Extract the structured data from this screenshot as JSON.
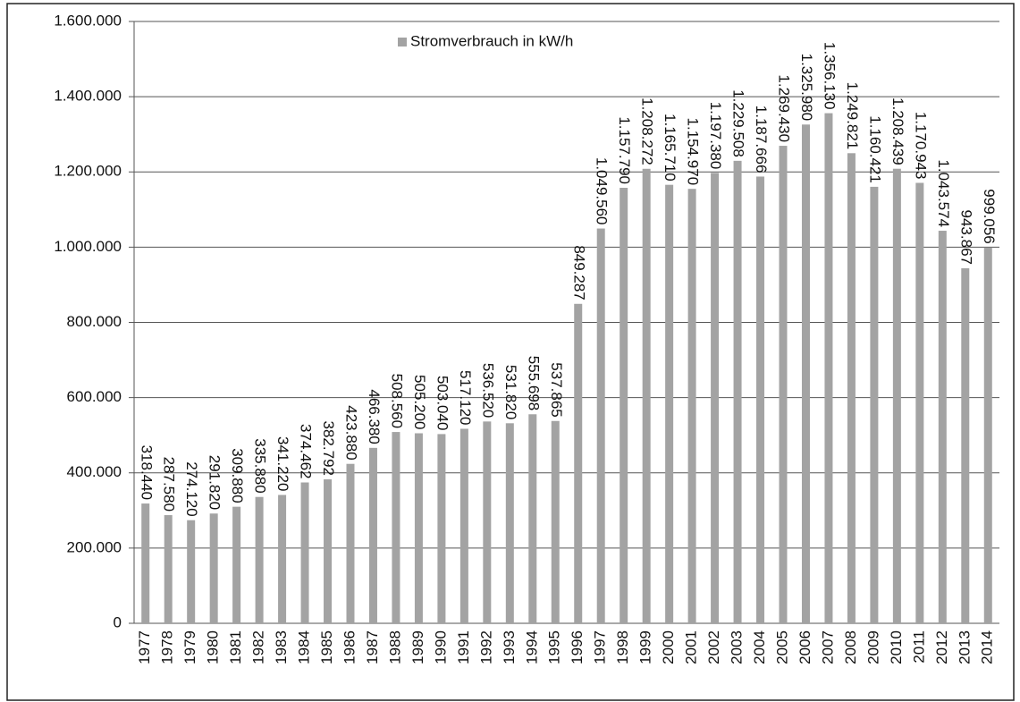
{
  "chart_data": {
    "type": "bar",
    "categories": [
      "1977",
      "1978",
      "1979",
      "1980",
      "1981",
      "1982",
      "1983",
      "1984",
      "1985",
      "1986",
      "1987",
      "1988",
      "1989",
      "1990",
      "1991",
      "1992",
      "1993",
      "1994",
      "1995",
      "1996",
      "1997",
      "1998",
      "1999",
      "2000",
      "2001",
      "2002",
      "2003",
      "2004",
      "2005",
      "2006",
      "2007",
      "2008",
      "2009",
      "2010",
      "2011",
      "2012",
      "2013",
      "2014"
    ],
    "series": [
      {
        "name": "Stromverbrauch in kW/h",
        "color": "#a3a3a3",
        "values": [
          318440,
          287580,
          274120,
          291820,
          309880,
          335880,
          341220,
          374462,
          382792,
          423880,
          466380,
          508560,
          505200,
          503040,
          517120,
          536520,
          531820,
          555698,
          537865,
          849287,
          1049560,
          1157790,
          1208272,
          1165710,
          1154970,
          1197380,
          1229508,
          1187666,
          1269430,
          1325980,
          1356130,
          1249821,
          1160421,
          1208439,
          1170943,
          1043574,
          943867,
          999056
        ],
        "value_labels": [
          "318.440",
          "287.580",
          "274.120",
          "291.820",
          "309.880",
          "335.880",
          "341.220",
          "374.462",
          "382.792",
          "423.880",
          "466.380",
          "508.560",
          "505.200",
          "503.040",
          "517.120",
          "536.520",
          "531.820",
          "555.698",
          "537.865",
          "849.287",
          "1.049.560",
          "1.157.790",
          "1.208.272",
          "1.165.710",
          "1.154.970",
          "1.197.380",
          "1.229.508",
          "1.187.666",
          "1.269.430",
          "1.325.980",
          "1.356.130",
          "1.249.821",
          "1.160.421",
          "1.208.439",
          "1.170.943",
          "1.043.574",
          "943.867",
          "999.056"
        ]
      }
    ],
    "ylim": [
      0,
      1600000
    ],
    "yticks": [
      0,
      {
        "value": 200000,
        "label": "200.000"
      },
      {
        "value": 400000,
        "label": "400.000"
      },
      {
        "value": 600000,
        "label": "600.000"
      },
      {
        "value": 800000,
        "label": "800.000"
      },
      {
        "value": 1000000,
        "label": "1.000.000"
      },
      {
        "value": 1200000,
        "label": "1.200.000"
      },
      {
        "value": 1400000,
        "label": "1.400.000"
      },
      {
        "value": 1600000,
        "label": "1.600.000"
      }
    ],
    "grid": true,
    "legend": "top"
  }
}
